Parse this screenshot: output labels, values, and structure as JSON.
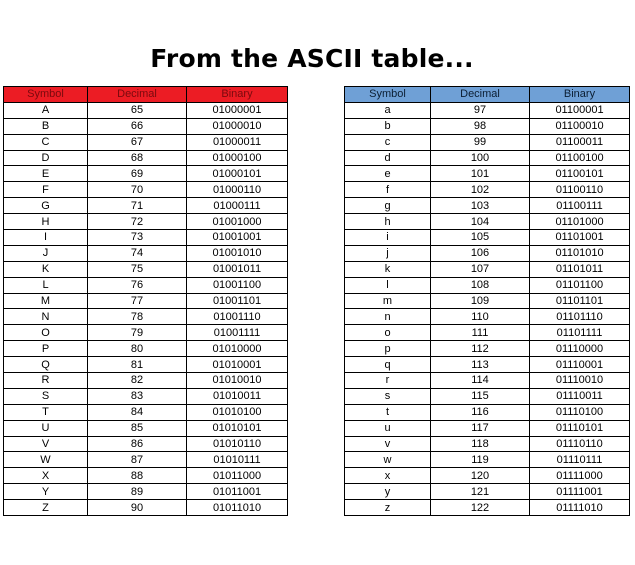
{
  "title": "From the ASCII table...",
  "colors": {
    "uppercase_header_bg": "#ec1c24",
    "uppercase_header_text": "#7a0a0e",
    "lowercase_header_bg": "#6fa0d6",
    "lowercase_header_text": "#0b1e33",
    "border": "#000000"
  },
  "tables": [
    {
      "name": "uppercase",
      "headers": [
        "Symbol",
        "Decimal",
        "Binary"
      ],
      "rows": [
        [
          "A",
          "65",
          "01000001"
        ],
        [
          "B",
          "66",
          "01000010"
        ],
        [
          "C",
          "67",
          "01000011"
        ],
        [
          "D",
          "68",
          "01000100"
        ],
        [
          "E",
          "69",
          "01000101"
        ],
        [
          "F",
          "70",
          "01000110"
        ],
        [
          "G",
          "71",
          "01000111"
        ],
        [
          "H",
          "72",
          "01001000"
        ],
        [
          "I",
          "73",
          "01001001"
        ],
        [
          "J",
          "74",
          "01001010"
        ],
        [
          "K",
          "75",
          "01001011"
        ],
        [
          "L",
          "76",
          "01001100"
        ],
        [
          "M",
          "77",
          "01001101"
        ],
        [
          "N",
          "78",
          "01001110"
        ],
        [
          "O",
          "79",
          "01001111"
        ],
        [
          "P",
          "80",
          "01010000"
        ],
        [
          "Q",
          "81",
          "01010001"
        ],
        [
          "R",
          "82",
          "01010010"
        ],
        [
          "S",
          "83",
          "01010011"
        ],
        [
          "T",
          "84",
          "01010100"
        ],
        [
          "U",
          "85",
          "01010101"
        ],
        [
          "V",
          "86",
          "01010110"
        ],
        [
          "W",
          "87",
          "01010111"
        ],
        [
          "X",
          "88",
          "01011000"
        ],
        [
          "Y",
          "89",
          "01011001"
        ],
        [
          "Z",
          "90",
          "01011010"
        ]
      ]
    },
    {
      "name": "lowercase",
      "headers": [
        "Symbol",
        "Decimal",
        "Binary"
      ],
      "rows": [
        [
          "a",
          "97",
          "01100001"
        ],
        [
          "b",
          "98",
          "01100010"
        ],
        [
          "c",
          "99",
          "01100011"
        ],
        [
          "d",
          "100",
          "01100100"
        ],
        [
          "e",
          "101",
          "01100101"
        ],
        [
          "f",
          "102",
          "01100110"
        ],
        [
          "g",
          "103",
          "01100111"
        ],
        [
          "h",
          "104",
          "01101000"
        ],
        [
          "i",
          "105",
          "01101001"
        ],
        [
          "j",
          "106",
          "01101010"
        ],
        [
          "k",
          "107",
          "01101011"
        ],
        [
          "l",
          "108",
          "01101100"
        ],
        [
          "m",
          "109",
          "01101101"
        ],
        [
          "n",
          "110",
          "01101110"
        ],
        [
          "o",
          "111",
          "01101111"
        ],
        [
          "p",
          "112",
          "01110000"
        ],
        [
          "q",
          "113",
          "01110001"
        ],
        [
          "r",
          "114",
          "01110010"
        ],
        [
          "s",
          "115",
          "01110011"
        ],
        [
          "t",
          "116",
          "01110100"
        ],
        [
          "u",
          "117",
          "01110101"
        ],
        [
          "v",
          "118",
          "01110110"
        ],
        [
          "w",
          "119",
          "01110111"
        ],
        [
          "x",
          "120",
          "01111000"
        ],
        [
          "y",
          "121",
          "01111001"
        ],
        [
          "z",
          "122",
          "01111010"
        ]
      ]
    }
  ]
}
